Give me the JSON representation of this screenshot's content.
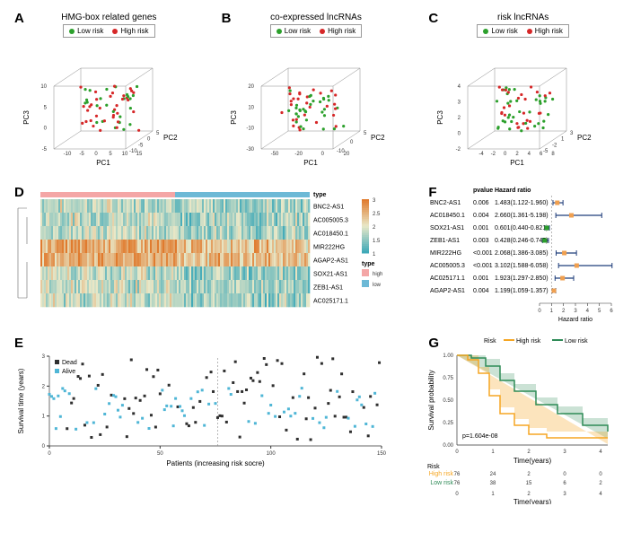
{
  "panels": {
    "A": {
      "label": "A",
      "title": "HMG-box related genes"
    },
    "B": {
      "label": "B",
      "title": "co-expressed lncRNAs"
    },
    "C": {
      "label": "C",
      "title": "risk lncRNAs"
    },
    "D": {
      "label": "D"
    },
    "E": {
      "label": "E"
    },
    "F": {
      "label": "F"
    },
    "G": {
      "label": "G"
    }
  },
  "scatter3d_legend": {
    "low": "Low risk",
    "high": "High risk"
  },
  "colors": {
    "low_risk": "#2ca02c",
    "high_risk": "#d62728",
    "heatmap_low": "#3fa9b8",
    "heatmap_mid": "#e8e8c8",
    "heatmap_high": "#e07b2e",
    "type_high": "#f4a6a6",
    "type_low": "#6db9d6",
    "scatter_dead": "#2f2f2f",
    "scatter_alive": "#4fb6d6",
    "km_high": "#f5a623",
    "km_low": "#2e8b57",
    "forest_point": "#f0a050",
    "forest_ci": "#1f3d7a",
    "forest_ref": "#999999"
  },
  "axes3d": {
    "A": {
      "pc1": [
        -10,
        -5,
        0,
        5,
        10,
        15
      ],
      "pc2": [
        -10,
        -5,
        0,
        5
      ],
      "pc3": [
        -5,
        0,
        5,
        10
      ]
    },
    "B": {
      "pc1": [
        -50,
        -20,
        0,
        20
      ],
      "pc2": [
        -10,
        0,
        5
      ],
      "pc3": [
        -30,
        -10,
        10,
        20
      ]
    },
    "C": {
      "pc1": [
        -4,
        -2,
        0,
        2,
        4,
        6,
        8
      ],
      "pc2": [
        -5,
        -2,
        1,
        3
      ],
      "pc3": [
        -2,
        0,
        2,
        3,
        4
      ]
    },
    "labels": {
      "x": "PC1",
      "y": "PC2",
      "z": "PC3"
    }
  },
  "heatmap": {
    "rows": [
      "BNC2-AS1",
      "AC005005.3",
      "AC018450.1",
      "MIR222HG",
      "AGAP2-AS1",
      "SOX21-AS1",
      "ZEB1-AS1",
      "AC025171.1"
    ],
    "type_label": "type",
    "type_levels": {
      "high": "high",
      "low": "low"
    },
    "colorbar_ticks": [
      1,
      1.5,
      2,
      2.5,
      3
    ]
  },
  "scatter_surv": {
    "xlabel": "Patients (increasing risk socre)",
    "ylabel": "Survival time (years)",
    "legend": {
      "dead": "Dead",
      "alive": "Alive"
    },
    "xlim": [
      0,
      150
    ],
    "xticks": [
      0,
      50,
      100,
      150
    ],
    "ylim": [
      0,
      3
    ],
    "yticks": [
      0,
      1,
      2,
      3
    ],
    "vline_x": 76
  },
  "forest": {
    "header_pvalue": "pvalue",
    "header_hr": "Hazard ratio",
    "xlabel": "Hazard ratio",
    "xticks": [
      0,
      1,
      2,
      3,
      4,
      5,
      6
    ],
    "ref_line": 1,
    "items": [
      {
        "name": "BNC2-AS1",
        "pvalue": "0.006",
        "hr_text": "1.483(1.122-1.960)",
        "hr": 1.483,
        "lo": 1.122,
        "hi": 1.96
      },
      {
        "name": "AC018450.1",
        "pvalue": "0.004",
        "hr_text": "2.660(1.361-5.198)",
        "hr": 2.66,
        "lo": 1.361,
        "hi": 5.198
      },
      {
        "name": "SOX21-AS1",
        "pvalue": "0.001",
        "hr_text": "0.601(0.440-0.821)",
        "hr": 0.601,
        "lo": 0.44,
        "hi": 0.821
      },
      {
        "name": "ZEB1-AS1",
        "pvalue": "0.003",
        "hr_text": "0.428(0.246-0.745)",
        "hr": 0.428,
        "lo": 0.246,
        "hi": 0.745
      },
      {
        "name": "MIR222HG",
        "pvalue": "<0.001",
        "hr_text": "2.068(1.386-3.085)",
        "hr": 2.068,
        "lo": 1.386,
        "hi": 3.085
      },
      {
        "name": "AC005005.3",
        "pvalue": "<0.001",
        "hr_text": "3.102(1.588-6.058)",
        "hr": 3.102,
        "lo": 1.588,
        "hi": 6.058
      },
      {
        "name": "AC025171.1",
        "pvalue": "0.001",
        "hr_text": "1.923(1.297-2.850)",
        "hr": 1.923,
        "lo": 1.297,
        "hi": 2.85
      },
      {
        "name": "AGAP2-AS1",
        "pvalue": "0.004",
        "hr_text": "1.199(1.059-1.357)",
        "hr": 1.199,
        "lo": 1.059,
        "hi": 1.357
      }
    ]
  },
  "km": {
    "legend_title": "Risk",
    "legend": {
      "high": "High risk",
      "low": "Low risk"
    },
    "xlabel": "Time(years)",
    "ylabel": "Survival probability",
    "pvalue": "p=1.604e-08",
    "xticks": [
      0,
      1,
      2,
      3,
      4
    ],
    "yticks": [
      0,
      0.25,
      0.5,
      0.75,
      1.0
    ],
    "risk_table": {
      "title": "Risk",
      "labels": {
        "high": "High risk",
        "low": "Low risk"
      },
      "times": [
        0,
        1,
        2,
        3,
        4
      ],
      "high": [
        76,
        24,
        2,
        0,
        0
      ],
      "low": [
        76,
        38,
        15,
        6,
        2
      ]
    },
    "high_curve": [
      [
        0,
        1.0
      ],
      [
        0.3,
        0.95
      ],
      [
        0.6,
        0.8
      ],
      [
        0.9,
        0.55
      ],
      [
        1.2,
        0.35
      ],
      [
        1.6,
        0.22
      ],
      [
        2.0,
        0.12
      ],
      [
        2.5,
        0.08
      ],
      [
        4.2,
        0.08
      ]
    ],
    "low_curve": [
      [
        0,
        1.0
      ],
      [
        0.4,
        0.97
      ],
      [
        0.8,
        0.88
      ],
      [
        1.2,
        0.72
      ],
      [
        1.6,
        0.6
      ],
      [
        2.2,
        0.45
      ],
      [
        2.8,
        0.35
      ],
      [
        3.5,
        0.22
      ],
      [
        4.2,
        0.15
      ]
    ]
  }
}
